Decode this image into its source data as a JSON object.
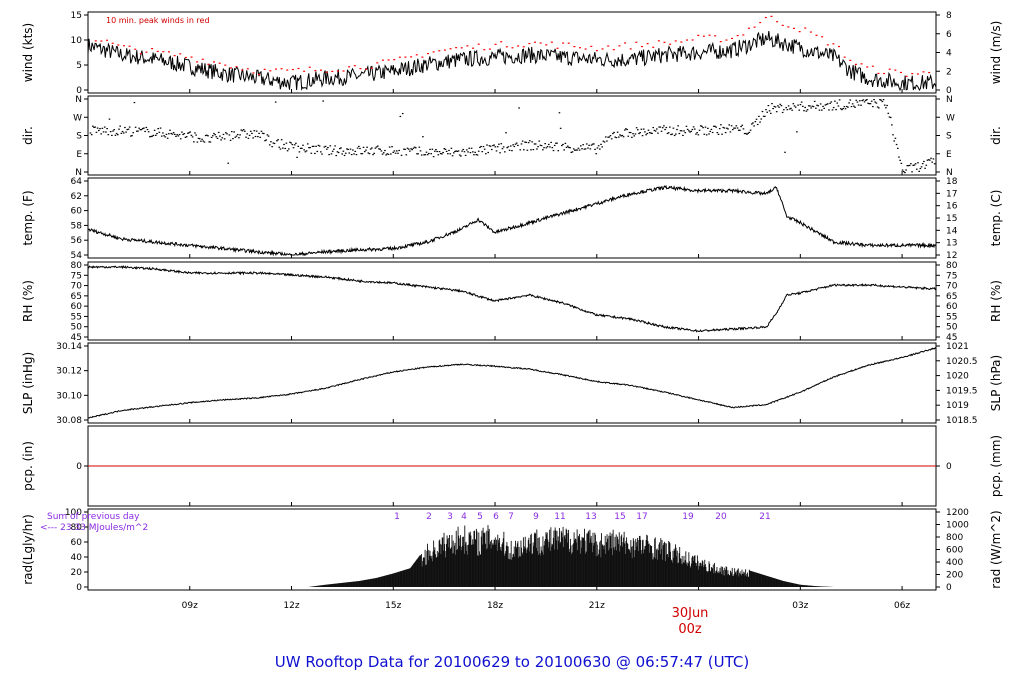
{
  "title": "UW Rooftop Data for 20100629  to  20100630 @ 06:57:47  (UTC)",
  "colors": {
    "series": "#000000",
    "peak": "#ff0000",
    "zero_line": "#d00000",
    "annotation": "#8a2be2",
    "title": "#1010d0"
  },
  "x_axis": {
    "ticks": [
      "09z",
      "12z",
      "15z",
      "18z",
      "21z",
      "03z",
      "06z"
    ],
    "date_label": "30Jun",
    "date_sub": "00z"
  },
  "panels": [
    {
      "key": "wind",
      "ylabel_left": "wind (kts)",
      "ylabel_right": "wind (m/s)",
      "left_ticks": [
        "0",
        "5",
        "10",
        "15"
      ],
      "right_ticks": [
        "0",
        "2",
        "4",
        "6",
        "8"
      ],
      "note": "10 min. peak winds in red"
    },
    {
      "key": "dir",
      "ylabel_left": "dir.",
      "ylabel_right": "dir.",
      "left_ticks": [
        "N",
        "E",
        "S",
        "W",
        "N"
      ],
      "right_ticks": [
        "N",
        "E",
        "S",
        "W",
        "N"
      ]
    },
    {
      "key": "temp",
      "ylabel_left": "temp. (F)",
      "ylabel_right": "temp. (C)",
      "left_ticks": [
        "54",
        "56",
        "58",
        "60",
        "62",
        "64"
      ],
      "right_ticks": [
        "12",
        "13",
        "14",
        "15",
        "16",
        "17",
        "18"
      ]
    },
    {
      "key": "rh",
      "ylabel_left": "RH (%)",
      "ylabel_right": "RH (%)",
      "left_ticks": [
        "45",
        "50",
        "55",
        "60",
        "65",
        "70",
        "75",
        "80"
      ],
      "right_ticks": [
        "45",
        "50",
        "55",
        "60",
        "65",
        "70",
        "75",
        "80"
      ]
    },
    {
      "key": "slp",
      "ylabel_left": "SLP (inHg)",
      "ylabel_right": "SLP (hPa)",
      "left_ticks": [
        "30.08",
        "30.10",
        "30.12",
        "30.14"
      ],
      "right_ticks": [
        "1018.5",
        "1019",
        "1019.5",
        "1020",
        "1020.5",
        "1021"
      ]
    },
    {
      "key": "pcp",
      "ylabel_left": "pcp. (in)",
      "ylabel_right": "pcp. (mm)",
      "left_ticks": [
        "0"
      ],
      "right_ticks": [
        "0"
      ]
    },
    {
      "key": "rad",
      "ylabel_left": "rad(Lgly/hr)",
      "ylabel_right": "rad (W/m^2)",
      "left_ticks": [
        "0",
        "20",
        "40",
        "60",
        "80",
        "100"
      ],
      "right_ticks": [
        "0",
        "200",
        "400",
        "600",
        "800",
        "1000",
        "1200"
      ],
      "note_line1": "Sum of previous day",
      "note_line2": "<--- 23.33 MJoules/m^2",
      "hour_labels": [
        "1",
        "2",
        "3",
        "4",
        "5",
        "6",
        "7",
        "9",
        "11",
        "13",
        "15",
        "17",
        "19",
        "20",
        "21"
      ]
    }
  ],
  "chart_data": {
    "type": "line",
    "x_unit": "hour UTC (6 = 06z 29 Jun, 24 = 00z 30 Jun, 31 = 07z 30 Jun)",
    "x_range": [
      6.0,
      31.0
    ],
    "series": [
      {
        "name": "wind (kts)",
        "ylim": [
          0,
          16
        ],
        "x": [
          6.0,
          7,
          8,
          9,
          10,
          11,
          12,
          13,
          14,
          15,
          16,
          17,
          18,
          19,
          20,
          21,
          22,
          23,
          24,
          25,
          26,
          27,
          28,
          28.5,
          29,
          30,
          31
        ],
        "y": [
          9.5,
          7.5,
          6.5,
          5,
          3.5,
          2.5,
          1.5,
          2.5,
          3,
          4,
          5.5,
          6.5,
          7,
          7.5,
          7,
          6.5,
          6.5,
          7.5,
          8,
          8.5,
          11,
          9,
          7,
          4,
          2.5,
          1.5,
          1.5
        ]
      },
      {
        "name": "10 min. peak winds",
        "ylim": [
          0,
          16
        ],
        "x": [
          6.2,
          7,
          8,
          9,
          10,
          11,
          12,
          13,
          14,
          15,
          16,
          17,
          18,
          19,
          20,
          21,
          22,
          23,
          24,
          25,
          26,
          27,
          28,
          28.5,
          29,
          30,
          31
        ],
        "y": [
          11,
          9,
          8,
          7,
          5.5,
          4,
          4,
          4.5,
          5,
          6,
          8,
          9,
          9.5,
          10,
          9.5,
          9,
          9.5,
          10,
          11,
          11,
          15.5,
          13,
          9.5,
          6,
          4.5,
          3.5,
          3.5
        ]
      },
      {
        "name": "wind direction",
        "ylim": [
          0,
          4
        ],
        "y_categories": [
          "N",
          "E",
          "S",
          "W",
          "N"
        ],
        "x": [
          6,
          7,
          8,
          9,
          9.5,
          10,
          10.5,
          11,
          11.5,
          12,
          13,
          14,
          15,
          16,
          17,
          18,
          19,
          20,
          21,
          21.5,
          22,
          23,
          24,
          25,
          25.5,
          26,
          27,
          28,
          29,
          29.5,
          30,
          31
        ],
        "y": [
          2.3,
          2.3,
          2.2,
          2.0,
          1.8,
          2.0,
          2.1,
          2.1,
          1.6,
          1.4,
          1.2,
          1.2,
          1.2,
          1.1,
          1.1,
          1.3,
          1.5,
          1.4,
          1.3,
          2.1,
          2.2,
          2.3,
          2.3,
          2.4,
          2.3,
          3.5,
          3.6,
          3.7,
          3.8,
          3.8,
          0.1,
          0.6
        ]
      },
      {
        "name": "temp (F)",
        "ylim": [
          54,
          65.5
        ],
        "x": [
          6,
          7,
          8,
          9,
          10,
          11,
          12,
          13,
          14,
          15,
          15.5,
          16,
          17,
          17.5,
          18,
          19,
          20,
          21,
          22,
          23,
          24,
          25,
          26,
          26.3,
          26.6,
          27,
          28,
          29,
          30,
          31
        ],
        "y": [
          58,
          56.5,
          56,
          55.5,
          55,
          54.5,
          54,
          54.5,
          54.8,
          55,
          55.5,
          56,
          58,
          59.5,
          57.5,
          59,
          60.5,
          62,
          63.5,
          64.5,
          64,
          64,
          63.5,
          64.5,
          60,
          59,
          56,
          55.5,
          55.5,
          55.5
        ]
      },
      {
        "name": "RH (%)",
        "ylim": [
          45,
          81
        ],
        "x": [
          6,
          7,
          8,
          9,
          10,
          11,
          12,
          13,
          14,
          15,
          16,
          17,
          18,
          19,
          20,
          21,
          22,
          23,
          24,
          25,
          26,
          26.3,
          26.6,
          27,
          28,
          29,
          30,
          31
        ],
        "y": [
          80,
          80,
          79,
          77,
          77,
          77,
          76,
          75,
          73,
          72,
          70,
          68,
          63,
          66,
          62,
          56,
          54,
          50,
          48,
          49,
          50,
          57,
          66,
          67,
          71,
          71,
          70,
          69
        ]
      },
      {
        "name": "SLP (inHg)",
        "ylim": [
          30.075,
          30.152
        ],
        "x": [
          6,
          7,
          8,
          9,
          10,
          11,
          12,
          13,
          14,
          15,
          16,
          17,
          18,
          19,
          20,
          21,
          22,
          23,
          24,
          25,
          26,
          27,
          28,
          29,
          30,
          31
        ],
        "y": [
          30.077,
          30.085,
          30.089,
          30.093,
          30.096,
          30.098,
          30.102,
          30.108,
          30.117,
          30.125,
          30.13,
          30.133,
          30.131,
          30.128,
          30.122,
          30.115,
          30.111,
          30.104,
          30.096,
          30.088,
          30.091,
          30.104,
          30.12,
          30.132,
          30.14,
          30.15
        ]
      },
      {
        "name": "pcp. (in)",
        "ylim": [
          -1,
          1
        ],
        "x": [
          6,
          31
        ],
        "y": [
          0,
          0
        ]
      },
      {
        "name": "rad (Lgly/hr)",
        "ylim": [
          0,
          100
        ],
        "x": [
          12.5,
          13,
          14,
          14.5,
          15,
          15.5,
          16,
          16.5,
          17,
          17.5,
          18,
          18.5,
          19,
          20,
          20.5,
          21,
          21.5,
          22,
          22.5,
          23,
          23.5,
          24,
          24.5,
          25,
          25.5,
          26,
          26.5,
          27,
          27.5,
          28
        ],
        "y": [
          0,
          3,
          8,
          12,
          18,
          25,
          55,
          70,
          80,
          75,
          82,
          60,
          75,
          78,
          80,
          70,
          75,
          70,
          68,
          62,
          50,
          40,
          30,
          25,
          22,
          15,
          8,
          3,
          1,
          0
        ]
      }
    ]
  }
}
